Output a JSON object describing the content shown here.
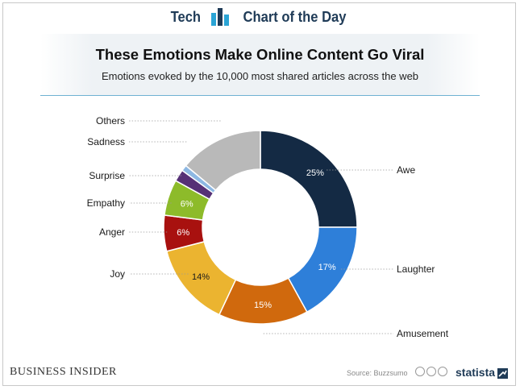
{
  "header": {
    "brand_left": "Tech",
    "brand_right": "Chart of the Day",
    "title": "These Emotions Make Online Content Go Viral",
    "subtitle": "Emotions evoked by the 10,000 most shared articles across the web"
  },
  "footer": {
    "publisher": "Business Insider",
    "source": "Source: Buzzsumo",
    "statista": "statista"
  },
  "colors": {
    "awe": "#142a44",
    "laughter": "#2e7fd9",
    "amusement": "#d0690d",
    "joy": "#ebb430",
    "anger": "#a8110f",
    "empathy": "#8dbb2a",
    "surprise": "#563076",
    "sadness": "#8db8e3",
    "others": "#b9b9b9",
    "brand": "#1f3b57",
    "rule": "#6fb2d2"
  },
  "chart_data": {
    "type": "pie",
    "title": "These Emotions Make Online Content Go Viral",
    "subtitle": "Emotions evoked by the 10,000 most shared articles across the web",
    "donut": true,
    "categories": [
      "Awe",
      "Laughter",
      "Amusement",
      "Joy",
      "Anger",
      "Empathy",
      "Surprise",
      "Sadness",
      "Others"
    ],
    "values": [
      25,
      17,
      15,
      14,
      6,
      6,
      2,
      1,
      14
    ],
    "value_labels": [
      "25%",
      "17%",
      "15%",
      "14%",
      "6%",
      "6%",
      "",
      "",
      ""
    ],
    "label_colors": [
      "#ffffff",
      "#ffffff",
      "#ffffff",
      "#1a1a1a",
      "#ffffff",
      "#ffffff",
      "",
      "",
      ""
    ]
  }
}
